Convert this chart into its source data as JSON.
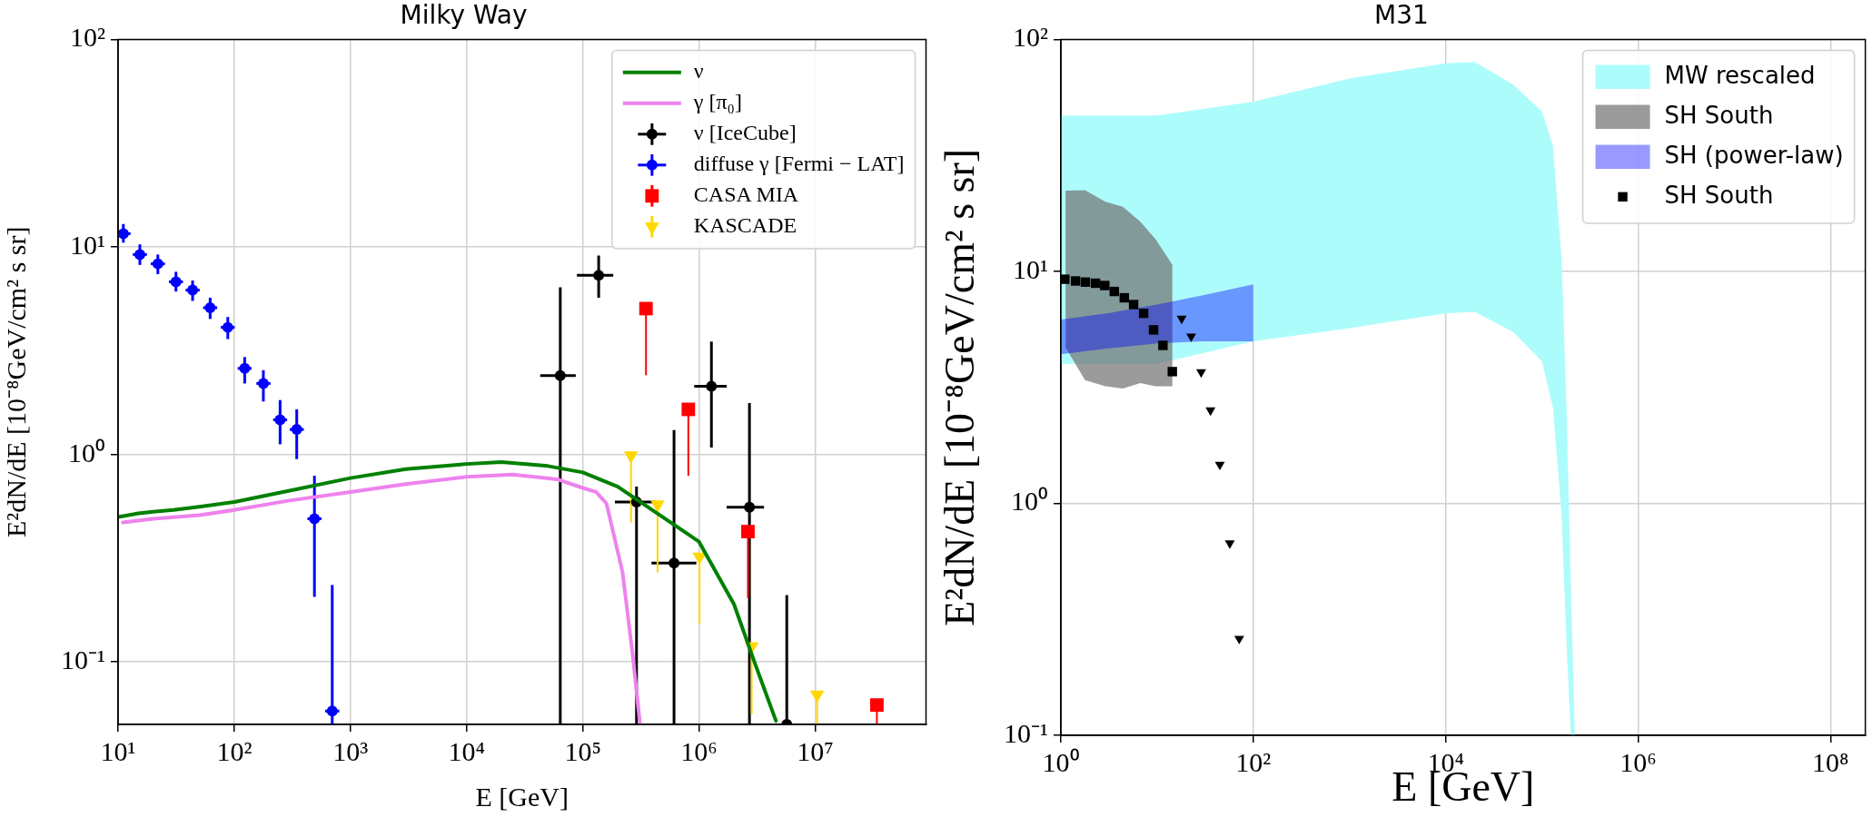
{
  "chart_data": [
    {
      "type": "line",
      "title": "Milky Way",
      "xlabel": "E [GeV]",
      "ylabel": "E²dN/dE [10⁻⁸GeV/cm² s sr]",
      "log": "xy",
      "grid": true,
      "legend": "top right",
      "xlim": [
        10,
        90000000
      ],
      "ylim": [
        0.05,
        100
      ],
      "xticks": [
        {
          "value": 10,
          "label": "10¹"
        },
        {
          "value": 100,
          "label": "10²"
        },
        {
          "value": 1000,
          "label": "10³"
        },
        {
          "value": 10000,
          "label": "10⁴"
        },
        {
          "value": 100000,
          "label": "10⁵"
        },
        {
          "value": 1000000,
          "label": "10⁶"
        },
        {
          "value": 10000000,
          "label": "10⁷"
        }
      ],
      "yticks": [
        {
          "value": 0.1,
          "label": "10⁻¹"
        },
        {
          "value": 1,
          "label": "10⁰"
        },
        {
          "value": 10,
          "label": "10¹"
        },
        {
          "value": 100,
          "label": "10²"
        }
      ],
      "series": [
        {
          "name": "ν",
          "color": "#008000",
          "marker": "none",
          "x": [
            10,
            15,
            20,
            30,
            50,
            100,
            300,
            1000,
            3000,
            10000,
            20000,
            50000,
            100000,
            200000,
            300000,
            1000000,
            2000000,
            3000000,
            4600000
          ],
          "values": [
            0.5,
            0.52,
            0.53,
            0.54,
            0.56,
            0.59,
            0.67,
            0.77,
            0.85,
            0.9,
            0.92,
            0.88,
            0.82,
            0.7,
            0.6,
            0.38,
            0.19,
            0.1,
            0.052
          ]
        },
        {
          "name": "γ [π₀]",
          "color": "#ee82ee",
          "marker": "none",
          "x": [
            11,
            20,
            50,
            100,
            300,
            1000,
            3000,
            10000,
            25000,
            60000,
            100000,
            130000,
            160000,
            220000,
            270000,
            310000
          ],
          "values": [
            0.47,
            0.49,
            0.51,
            0.54,
            0.6,
            0.66,
            0.72,
            0.78,
            0.8,
            0.76,
            0.69,
            0.66,
            0.58,
            0.27,
            0.106,
            0.051
          ]
        },
        {
          "name": "ν [IceCube]",
          "type": "scatter",
          "color": "#000000",
          "marker": "circle",
          "x": [
            64000,
            137000,
            290000,
            610000,
            1280000,
            2720000,
            5700000
          ],
          "values": [
            2.4,
            7.3,
            0.59,
            0.3,
            2.13,
            0.557,
            0.05
          ],
          "errors": [
            [
              0.05,
              6.4
            ],
            [
              5.7,
              9.1
            ],
            [
              0.05,
              0.7
            ],
            [
              0.05,
              1.31
            ],
            [
              1.08,
              3.5
            ],
            [
              0.05,
              1.77
            ],
            [
              0.05,
              0.21
            ]
          ],
          "xerrors": [
            [
              43000,
              87000
            ],
            [
              89000,
              183000
            ],
            [
              189000,
              420000
            ],
            [
              390000,
              950000
            ],
            [
              910000,
              1730000
            ],
            [
              1730000,
              3630000
            ],
            null
          ]
        },
        {
          "name": "diffuse γ [Fermi − LAT]",
          "type": "scatter",
          "color": "#0000ff",
          "marker": "circle",
          "x": [
            11.1,
            15.4,
            22,
            31.5,
            43.8,
            62,
            88,
            123,
            178,
            248,
            345,
            490,
            697
          ],
          "values": [
            11.6,
            9.2,
            8.3,
            6.8,
            6.2,
            5.1,
            4.1,
            2.6,
            2.2,
            1.47,
            1.32,
            0.49,
            0.058
          ],
          "errors": [
            [
              10.5,
              12.9
            ],
            [
              8.2,
              10.3
            ],
            [
              7.4,
              9.2
            ],
            [
              6.1,
              7.6
            ],
            [
              5.5,
              6.9
            ],
            [
              4.5,
              5.7
            ],
            [
              3.6,
              4.6
            ],
            [
              2.2,
              2.95
            ],
            [
              1.8,
              2.55
            ],
            [
              1.12,
              1.83
            ],
            [
              0.95,
              1.65
            ],
            [
              0.206,
              0.79
            ],
            [
              0.05,
              0.235
            ]
          ],
          "xerrors": [
            [
              9.7,
              12.8
            ],
            [
              13.4,
              17.7
            ],
            [
              19.1,
              25.3
            ],
            [
              27.4,
              36.2
            ],
            [
              38.1,
              50.4
            ],
            [
              53.9,
              71.3
            ],
            [
              76.6,
              101
            ],
            [
              107,
              141
            ],
            [
              155,
              205
            ],
            [
              216,
              285
            ],
            [
              300,
              397
            ],
            [
              426,
              564
            ],
            [
              606,
              802
            ]
          ]
        },
        {
          "name": "CASA MIA",
          "type": "scatter",
          "color": "#ff0000",
          "marker": "square",
          "x": [
            350000,
            810000,
            2640000,
            34000000
          ],
          "values": [
            5.05,
            1.65,
            0.425,
            0.062
          ],
          "errors": [
            [
              2.41,
              5.05
            ],
            [
              0.79,
              1.65
            ],
            [
              0.203,
              0.425
            ],
            [
              0.05,
              0.062
            ]
          ]
        },
        {
          "name": "KASCADE",
          "type": "scatter",
          "color": "#ffd700",
          "marker": "triangle",
          "x": [
            260000,
            440000,
            1010000,
            2840000,
            10400000
          ],
          "values": [
            0.99,
            0.574,
            0.322,
            0.119,
            0.0695
          ],
          "errors": [
            [
              0.47,
              0.99
            ],
            [
              0.27,
              0.574
            ],
            [
              0.152,
              0.322
            ],
            [
              0.056,
              0.119
            ],
            [
              0.05,
              0.0695
            ]
          ]
        }
      ]
    },
    {
      "type": "area",
      "title": "M31",
      "xlabel": "E [GeV]",
      "ylabel": "E²dN/dE [10⁻⁸GeV/cm² s sr]",
      "log": "xy",
      "grid": true,
      "legend": "top right",
      "xlim": [
        1,
        230000000
      ],
      "ylim": [
        0.1,
        100
      ],
      "xticks": [
        {
          "value": 1,
          "label": "10⁰"
        },
        {
          "value": 100,
          "label": "10²"
        },
        {
          "value": 10000,
          "label": "10⁴"
        },
        {
          "value": 1000000,
          "label": "10⁶"
        },
        {
          "value": 100000000,
          "label": "10⁸"
        }
      ],
      "yticks": [
        {
          "value": 0.1,
          "label": "10⁻¹"
        },
        {
          "value": 1,
          "label": "10⁰"
        },
        {
          "value": 10,
          "label": "10¹"
        },
        {
          "value": 100,
          "label": "10²"
        }
      ],
      "series": [
        {
          "name": "MW rescaled",
          "color": "#adfcfc",
          "x": [
            1,
            10,
            100,
            1000,
            10000,
            20000,
            50000,
            100000,
            130000,
            160000,
            180000,
            200000,
            220000
          ],
          "values": [
            null,
            null,
            null,
            null,
            null,
            null,
            null,
            null,
            null,
            null,
            null,
            null,
            null
          ],
          "lower": [
            4.0,
            4.0,
            5.0,
            5.7,
            6.6,
            6.7,
            5.5,
            4.1,
            2.6,
            0.9,
            0.25,
            0.1,
            0.1
          ],
          "upper": [
            47,
            47,
            54,
            68,
            79,
            80,
            64,
            49,
            35,
            11.5,
            2.6,
            0.44,
            0.1
          ]
        },
        {
          "name": "SH South",
          "color": "#707070",
          "x": [
            1.12,
            1.78,
            2.9,
            4.4,
            6.7,
            9.6,
            14.4
          ],
          "values": [
            null,
            null,
            null,
            null,
            null,
            null,
            null
          ],
          "lower": [
            4.7,
            3.4,
            3.2,
            3.13,
            3.3,
            3.2,
            3.2
          ],
          "upper": [
            22.3,
            22.4,
            20,
            19,
            16.4,
            13.8,
            10.7
          ]
        },
        {
          "name": "SH (power-law)",
          "color": "#0000ff",
          "x": [
            1,
            3,
            10,
            30,
            100
          ],
          "values": [
            null,
            null,
            null,
            null,
            null
          ],
          "lower": [
            4.4,
            4.65,
            4.9,
            5.0,
            5.0
          ],
          "upper": [
            6.2,
            6.6,
            7.2,
            7.9,
            8.8
          ]
        },
        {
          "name": "SH South",
          "type": "scatter",
          "color": "#000000",
          "marker": "square",
          "x": [
            1.1,
            1.42,
            1.8,
            2.29,
            2.86,
            3.59,
            4.56,
            5.7,
            7.24,
            9.19,
            11.5,
            14.4
          ],
          "values": [
            9.26,
            9.1,
            9.0,
            8.9,
            8.7,
            8.2,
            7.7,
            7.2,
            6.6,
            5.6,
            4.8,
            3.7
          ]
        },
        {
          "type": "scatter",
          "color": "#000000",
          "marker": "triangle",
          "x": [
            18.0,
            22.6,
            28.7,
            35.9,
            44.9,
            57.0,
            71.4
          ],
          "values": [
            6.27,
            5.25,
            3.68,
            2.52,
            1.47,
            0.673,
            0.261
          ]
        }
      ]
    }
  ]
}
